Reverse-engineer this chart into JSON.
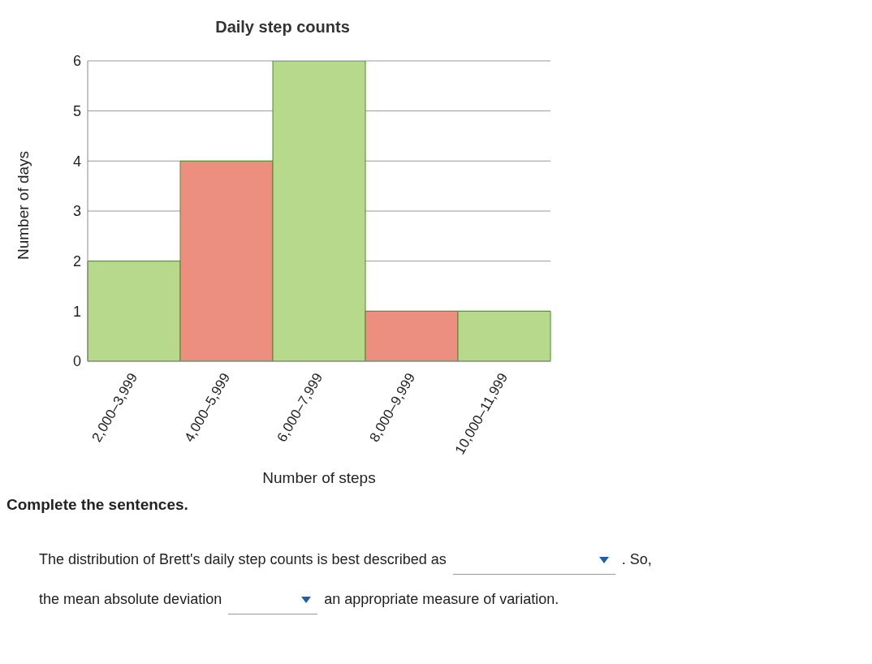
{
  "chart_data": {
    "type": "bar",
    "title": "Daily step counts",
    "xlabel": "Number of steps",
    "ylabel": "Number of days",
    "categories": [
      "2,000–3,999",
      "4,000–5,999",
      "6,000–7,999",
      "8,000–9,999",
      "10,000–11,999"
    ],
    "values": [
      2,
      4,
      6,
      1,
      1
    ],
    "colors": [
      "#b6d98c",
      "#ec8f80",
      "#b6d98c",
      "#ec8f80",
      "#b6d98c"
    ],
    "ylim": [
      0,
      6
    ],
    "yticks": [
      0,
      1,
      2,
      3,
      4,
      5,
      6
    ],
    "grid": "y",
    "legend": false,
    "annotations": [
      "Complete the sentences.",
      "The distribution of Brett's daily step counts is best described as",
      ". So,",
      "the mean absolute deviation",
      "an appropriate measure of variation."
    ]
  }
}
